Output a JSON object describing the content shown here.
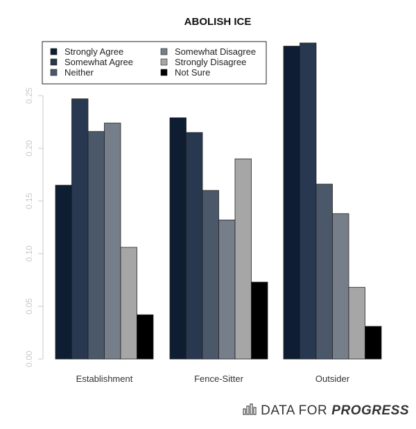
{
  "chart_data": {
    "type": "bar",
    "title": "ABOLISH ICE",
    "categories": [
      "Establishment",
      "Fence-Sitter",
      "Outsider"
    ],
    "series": [
      {
        "name": "Strongly Agree",
        "color": "#0f1d33",
        "values": [
          0.165,
          0.229,
          0.297
        ]
      },
      {
        "name": "Somewhat Agree",
        "color": "#283850",
        "values": [
          0.247,
          0.215,
          0.3
        ]
      },
      {
        "name": "Neither",
        "color": "#4a5869",
        "values": [
          0.216,
          0.16,
          0.166
        ]
      },
      {
        "name": "Somewhat Disagree",
        "color": "#767f89",
        "values": [
          0.224,
          0.132,
          0.138
        ]
      },
      {
        "name": "Strongly Disagree",
        "color": "#a6a6a6",
        "values": [
          0.106,
          0.19,
          0.068
        ]
      },
      {
        "name": "Not Sure",
        "color": "#000000",
        "values": [
          0.042,
          0.073,
          0.031
        ]
      }
    ],
    "yticks": [
      "0.00",
      "0.05",
      "0.10",
      "0.15",
      "0.20",
      "0.25"
    ],
    "ylim": [
      0,
      0.3
    ],
    "xlabel": "",
    "ylabel": "",
    "grid": false,
    "legend_position": "top-left"
  },
  "branding": {
    "text_a": "DATA FOR",
    "text_b": "PROGRESS",
    "icon": "bar-chart-icon"
  }
}
